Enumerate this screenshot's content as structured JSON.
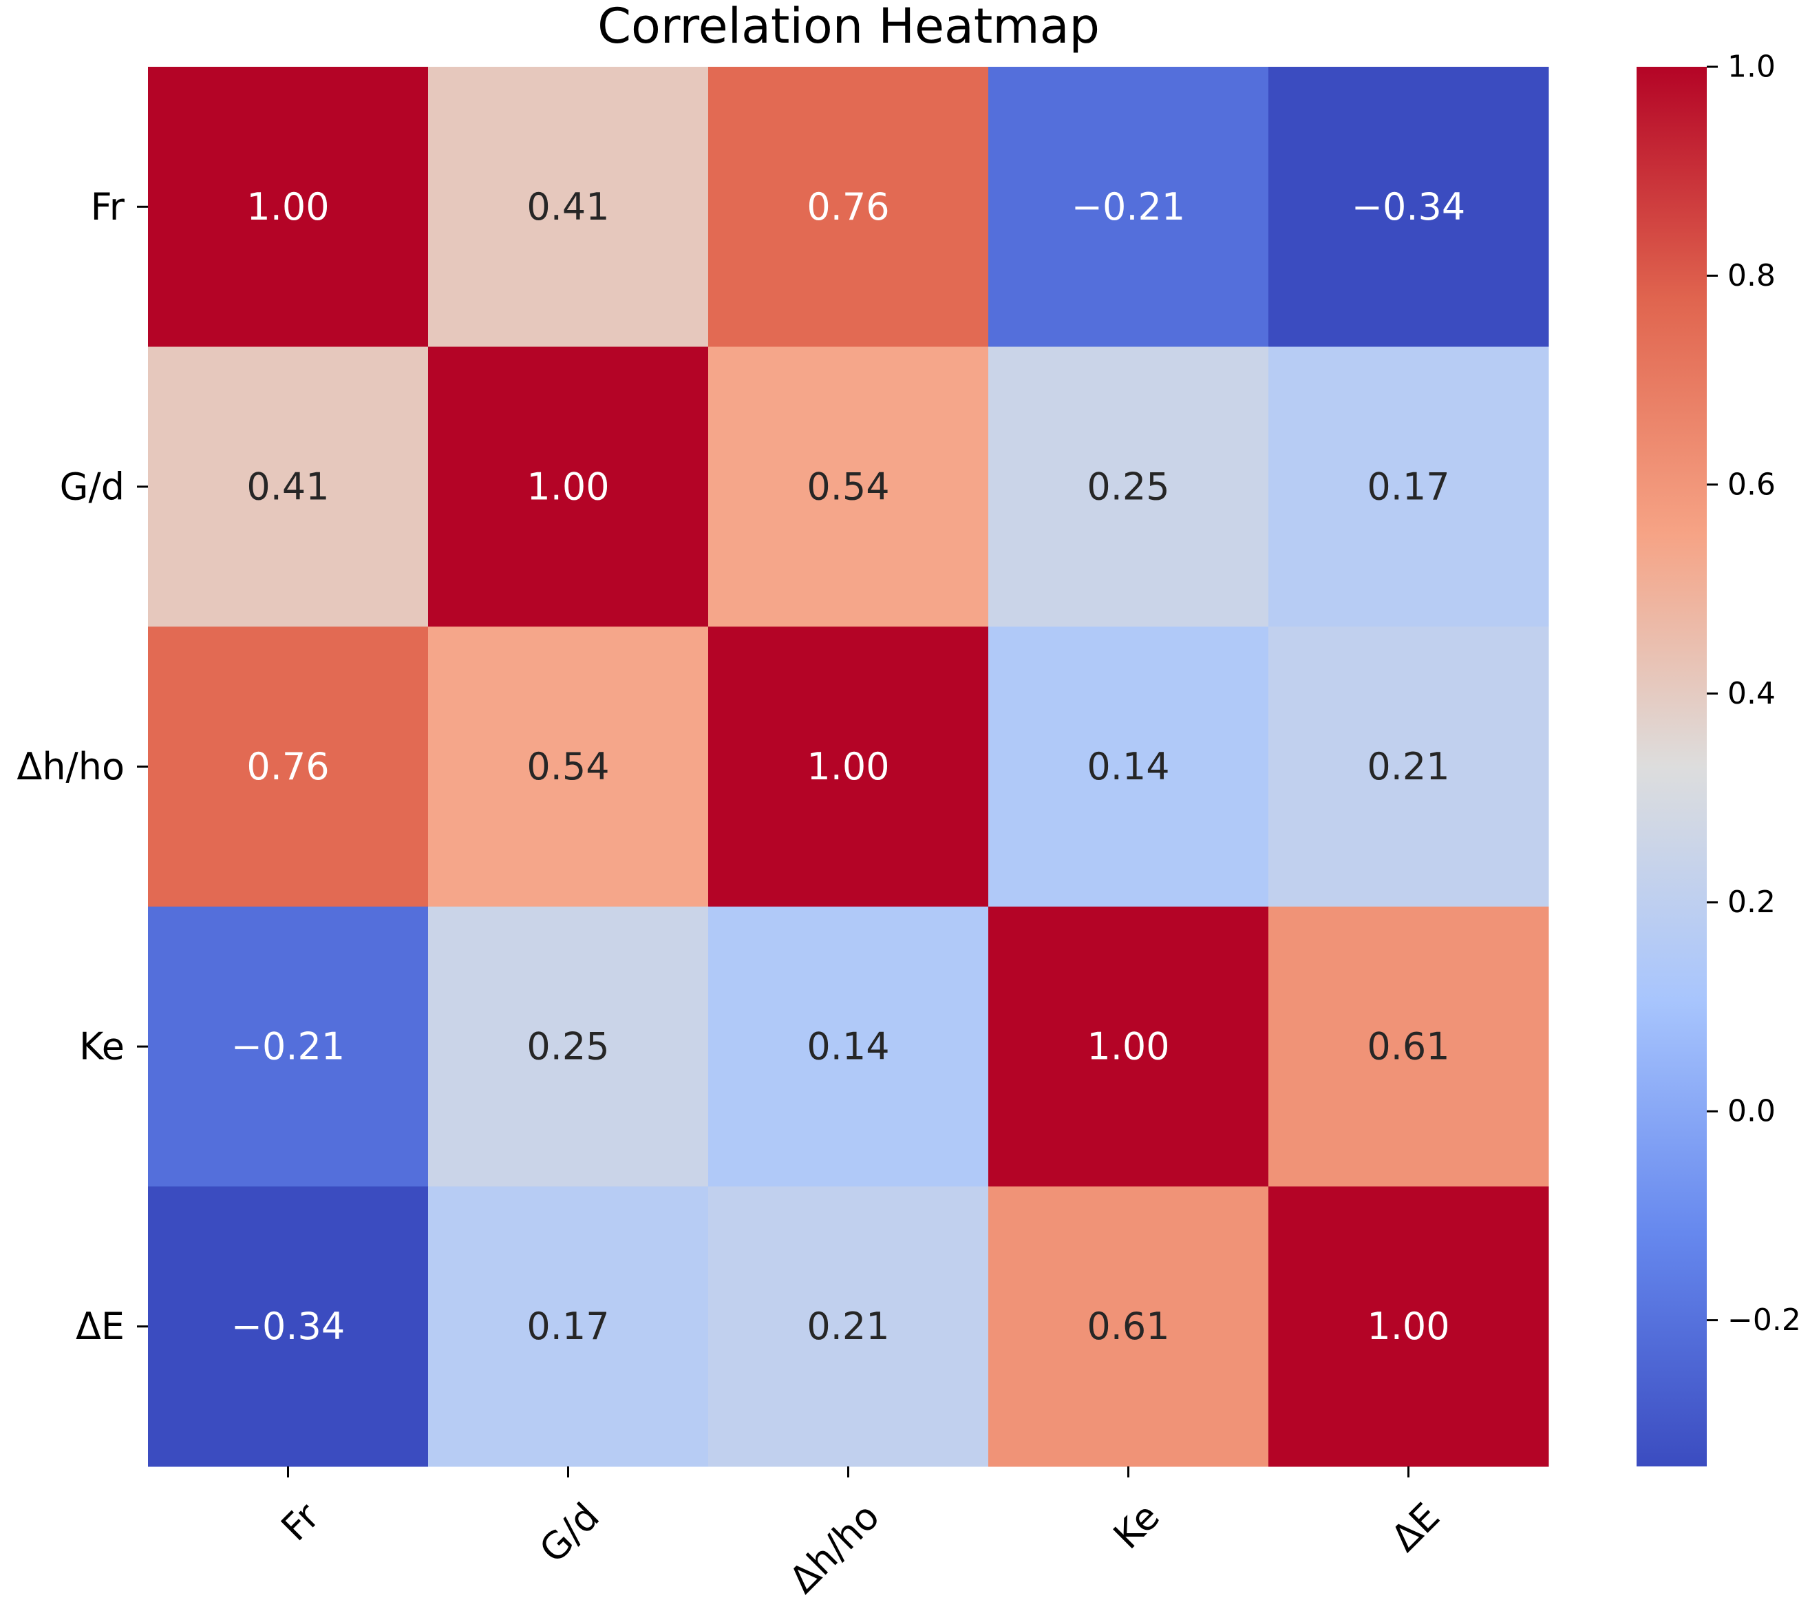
{
  "chart_data": {
    "type": "heatmap",
    "title": "Correlation Heatmap",
    "row_labels": [
      "Fr",
      "G/d",
      "Δh/ho",
      "Ke",
      "ΔE"
    ],
    "col_labels": [
      "Fr",
      "G/d",
      "Δh/ho",
      "Ke",
      "ΔE"
    ],
    "values": [
      [
        1.0,
        0.41,
        0.76,
        -0.21,
        -0.34
      ],
      [
        0.41,
        1.0,
        0.54,
        0.25,
        0.17
      ],
      [
        0.76,
        0.54,
        1.0,
        0.14,
        0.21
      ],
      [
        -0.21,
        0.25,
        0.14,
        1.0,
        0.61
      ],
      [
        -0.34,
        0.17,
        0.21,
        0.61,
        1.0
      ]
    ],
    "cell_labels": [
      [
        "1.00",
        "0.41",
        "0.76",
        "−0.21",
        "−0.34"
      ],
      [
        "0.41",
        "1.00",
        "0.54",
        "0.25",
        "0.17"
      ],
      [
        "0.76",
        "0.54",
        "1.00",
        "0.14",
        "0.21"
      ],
      [
        "−0.21",
        "0.25",
        "0.14",
        "1.00",
        "0.61"
      ],
      [
        "−0.34",
        "0.17",
        "0.21",
        "0.61",
        "1.00"
      ]
    ],
    "colormap": "coolwarm",
    "colormap_stops": [
      "#3b4cc0",
      "#6688ee",
      "#a8c5fd",
      "#dddddd",
      "#f6a385",
      "#e0654f",
      "#b40426"
    ],
    "vmin": -0.34,
    "vmax": 1.0,
    "colorbar": {
      "ticks": [
        -0.2,
        0.0,
        0.2,
        0.4,
        0.6,
        0.8,
        1.0
      ],
      "tick_labels": [
        "−0.2",
        "0.0",
        "0.2",
        "0.4",
        "0.6",
        "0.8",
        "1.0"
      ]
    },
    "x_tick_rotation": 45
  }
}
